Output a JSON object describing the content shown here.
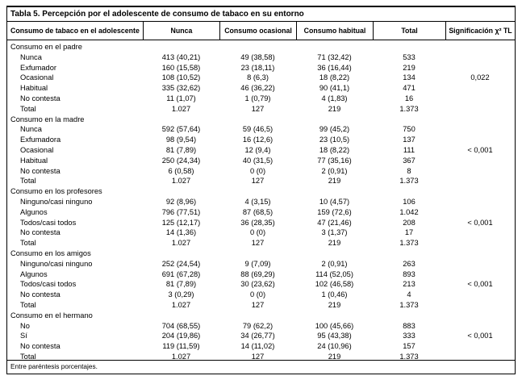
{
  "table": {
    "title": "Tabla 5. Percepción por el adolescente de consumo de tabaco en su entorno",
    "columns": [
      "Consumo de tabaco en el adolescente",
      "Nunca",
      "Consumo ocasional",
      "Consumo habitual",
      "Total",
      "Significación χ² TL"
    ],
    "sections": [
      {
        "header": "Consumo en el padre",
        "rows": [
          [
            "Nunca",
            "413 (40,21)",
            "49 (38,58)",
            "71 (32,42)",
            "533",
            ""
          ],
          [
            "Exfumador",
            "160 (15,58)",
            "23 (18,11)",
            "36 (16,44)",
            "219",
            ""
          ],
          [
            "Ocasional",
            "108 (10,52)",
            "8 (6,3)",
            "18 (8,22)",
            "134",
            "0,022"
          ],
          [
            "Habitual",
            "335 (32,62)",
            "46 (36,22)",
            "90 (41,1)",
            "471",
            ""
          ],
          [
            "No contesta",
            "11 (1,07)",
            "1 (0,79)",
            "4 (1,83)",
            "16",
            ""
          ],
          [
            "Total",
            "1.027",
            "127",
            "219",
            "1.373",
            ""
          ]
        ]
      },
      {
        "header": "Consumo en la madre",
        "rows": [
          [
            "Nunca",
            "592 (57,64)",
            "59 (46,5)",
            "99 (45,2)",
            "750",
            ""
          ],
          [
            "Exfumadora",
            "98 (9,54)",
            "16 (12,6)",
            "23 (10,5)",
            "137",
            ""
          ],
          [
            "Ocasional",
            "81 (7,89)",
            "12 (9,4)",
            "18 (8,22)",
            "111",
            "< 0,001"
          ],
          [
            "Habitual",
            "250 (24,34)",
            "40 (31,5)",
            "77 (35,16)",
            "367",
            ""
          ],
          [
            "No contesta",
            "6 (0,58)",
            "0 (0)",
            "2 (0,91)",
            "8",
            ""
          ],
          [
            "Total",
            "1.027",
            "127",
            "219",
            "1.373",
            ""
          ]
        ]
      },
      {
        "header": "Consumo en los profesores",
        "rows": [
          [
            "Ninguno/casi ninguno",
            "92 (8,96)",
            "4 (3,15)",
            "10 (4,57)",
            "106",
            ""
          ],
          [
            "Algunos",
            "796 (77,51)",
            "87 (68,5)",
            "159 (72,6)",
            "1.042",
            ""
          ],
          [
            "Todos/casi todos",
            "125 (12,17)",
            "36 (28,35)",
            "47 (21,46)",
            "208",
            "< 0,001"
          ],
          [
            "No contesta",
            "14 (1,36)",
            "0 (0)",
            "3 (1,37)",
            "17",
            ""
          ],
          [
            "Total",
            "1.027",
            "127",
            "219",
            "1.373",
            ""
          ]
        ]
      },
      {
        "header": "Consumo en los amigos",
        "rows": [
          [
            "Ninguno/casi ninguno",
            "252 (24,54)",
            "9 (7,09)",
            "2 (0,91)",
            "263",
            ""
          ],
          [
            "Algunos",
            "691 (67,28)",
            "88 (69,29)",
            "114 (52,05)",
            "893",
            ""
          ],
          [
            "Todos/casi todos",
            "81 (7,89)",
            "30 (23,62)",
            "102 (46,58)",
            "213",
            "< 0,001"
          ],
          [
            "No contesta",
            "3 (0,29)",
            "0 (0)",
            "1 (0,46)",
            "4",
            ""
          ],
          [
            "Total",
            "1.027",
            "127",
            "219",
            "1.373",
            ""
          ]
        ]
      },
      {
        "header": "Consumo en el hermano",
        "rows": [
          [
            "No",
            "704 (68,55)",
            "79 (62,2)",
            "100 (45,66)",
            "883",
            ""
          ],
          [
            "Sí",
            "204 (19,86)",
            "34 (26,77)",
            "95 (43,38)",
            "333",
            "< 0,001"
          ],
          [
            "No contesta",
            "119 (11,59)",
            "14 (11,02)",
            "24 (10,96)",
            "157",
            ""
          ],
          [
            "Total",
            "1.027",
            "127",
            "219",
            "1.373",
            ""
          ]
        ]
      }
    ],
    "footnote": "Entre paréntesis porcentajes."
  }
}
